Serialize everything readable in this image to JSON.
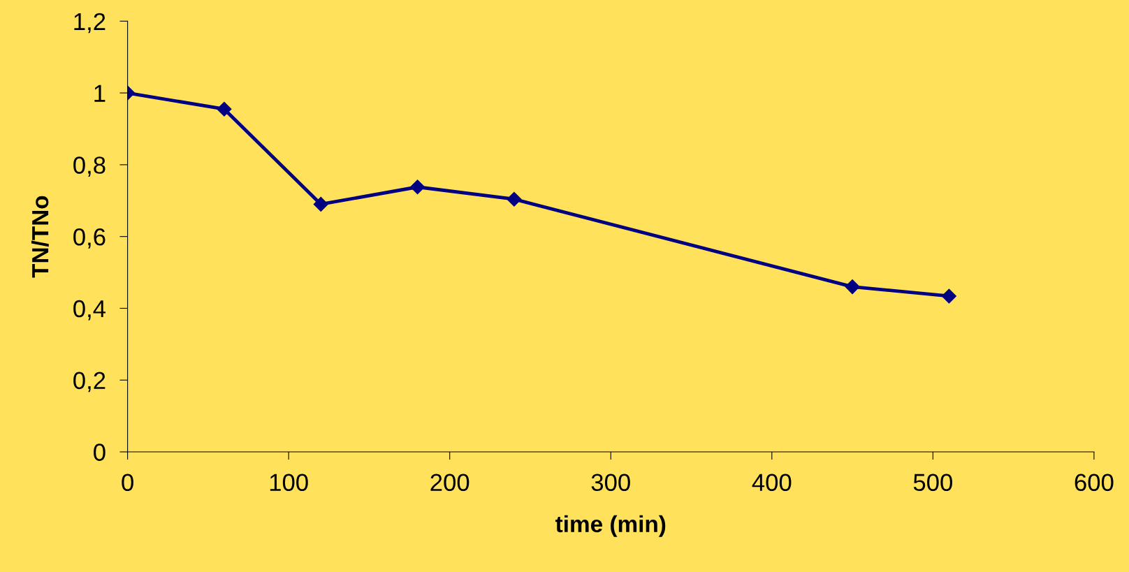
{
  "chart_data": {
    "type": "line",
    "xlabel": "time (min)",
    "ylabel": "TN/TNo",
    "x": [
      0,
      60,
      120,
      180,
      240,
      450,
      510
    ],
    "series": [
      {
        "color": "#000080",
        "values": [
          1.0,
          0.955,
          0.69,
          0.738,
          0.704,
          0.46,
          0.434
        ]
      }
    ],
    "xlim": [
      0,
      600
    ],
    "xticks": [
      0,
      100,
      200,
      300,
      400,
      500,
      600
    ],
    "ylim": [
      0,
      1.2
    ],
    "yticks": [
      0,
      {
        "value": 0.2,
        "label": "0,2"
      },
      {
        "value": 0.4,
        "label": "0,4"
      },
      {
        "value": 0.6,
        "label": "0,6"
      },
      {
        "value": 0.8,
        "label": "0,8"
      },
      1,
      {
        "value": 1.2,
        "label": "1,2"
      }
    ],
    "grid": false,
    "marker": "diamond",
    "line_style": "solid"
  }
}
